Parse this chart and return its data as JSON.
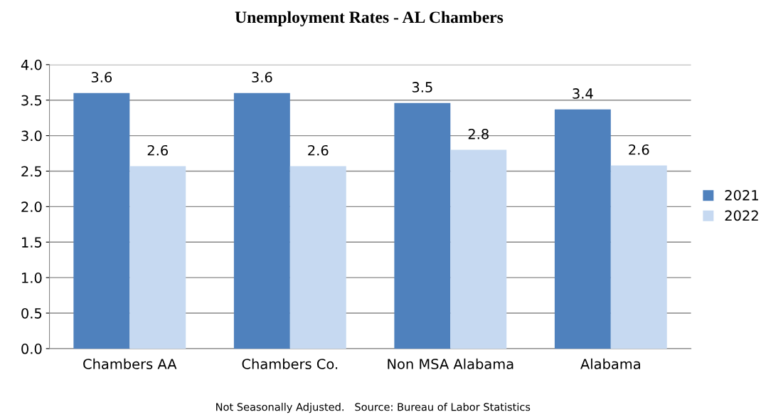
{
  "chart_data": {
    "type": "bar",
    "title": "Unemployment Rates - AL Chambers",
    "categories": [
      "Chambers AA",
      "Chambers Co.",
      "Non MSA Alabama",
      "Alabama"
    ],
    "series": [
      {
        "name": "2021",
        "color": "#4f81bd",
        "values": [
          3.6,
          3.6,
          3.46,
          3.37
        ],
        "value_labels": [
          "3.6",
          "3.6",
          "3.5",
          "3.4"
        ]
      },
      {
        "name": "2022",
        "color": "#c6d9f1",
        "values": [
          2.57,
          2.57,
          2.8,
          2.58
        ],
        "value_labels": [
          "2.6",
          "2.6",
          "2.8",
          "2.6"
        ]
      }
    ],
    "ylim": [
      0,
      4
    ],
    "yticks": [
      {
        "value": 0,
        "label": "0.0"
      },
      {
        "value": 0.5,
        "label": "0.5"
      },
      {
        "value": 1,
        "label": "1.0"
      },
      {
        "value": 1.5,
        "label": "1.5"
      },
      {
        "value": 2,
        "label": "2.0"
      },
      {
        "value": 2.5,
        "label": "2.5"
      },
      {
        "value": 3,
        "label": "3.0"
      },
      {
        "value": 3.5,
        "label": "3.5"
      },
      {
        "value": 4,
        "label": "4.0"
      }
    ],
    "grid": "y",
    "legend": "right",
    "annotations": [
      "Not Seasonally Adjusted.   Source: Bureau of Labor Statistics"
    ]
  }
}
